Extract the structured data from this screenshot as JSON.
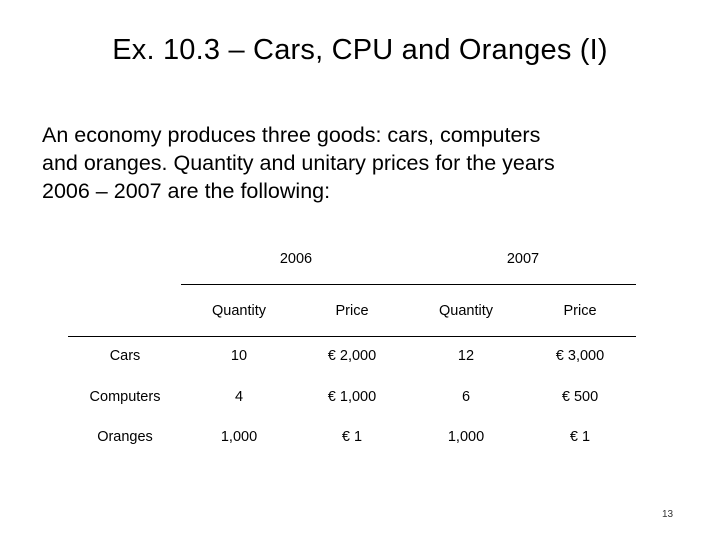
{
  "slide": {
    "title": "Ex. 10.3 – Cars, CPU and Oranges (I)",
    "body_lines": [
      "An economy produces three goods: cars, computers",
      "and oranges. Quantity and unitary prices for the years",
      "2006 – 2007 are the following:"
    ],
    "page_number": "13"
  },
  "table": {
    "years": [
      "2006",
      "2007"
    ],
    "headers": [
      "Quantity",
      "Price",
      "Quantity",
      "Price"
    ],
    "rows": [
      {
        "label": "Cars",
        "q2006": "10",
        "p2006": "€ 2,000",
        "q2007": "12",
        "p2007": "€ 3,000"
      },
      {
        "label": "Computers",
        "q2006": "4",
        "p2006": "€ 1,000",
        "q2007": "6",
        "p2007": "€ 500"
      },
      {
        "label": "Oranges",
        "q2006": "1,000",
        "p2006": "€ 1",
        "q2007": "1,000",
        "p2007": "€ 1"
      }
    ]
  }
}
